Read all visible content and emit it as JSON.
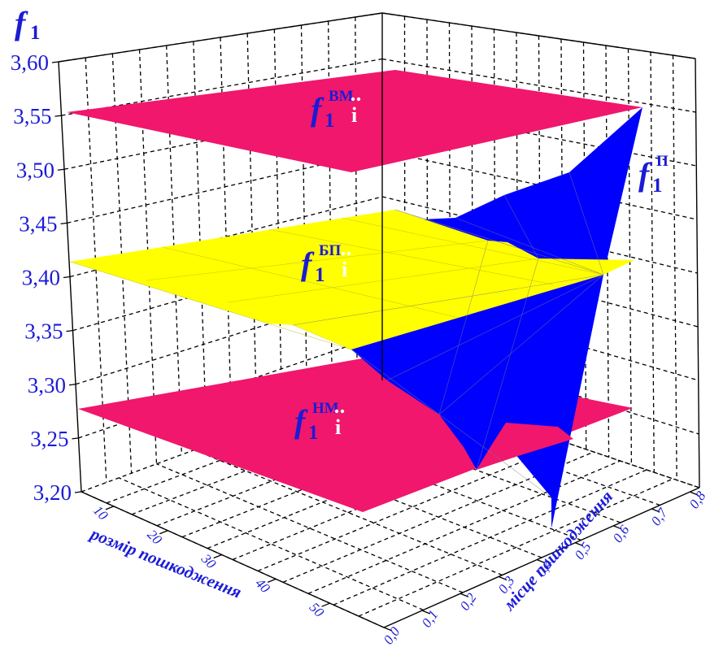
{
  "chart_data": {
    "type": "surface3d",
    "z_axis": {
      "label_symbol": "f",
      "label_sub": "1",
      "ticks": [
        "3,20",
        "3,25",
        "3,30",
        "3,35",
        "3,40",
        "3,45",
        "3,50",
        "3,55",
        "3,60"
      ],
      "range": [
        3.2,
        3.6
      ]
    },
    "x_axis": {
      "label": "розмір пошкодження",
      "ticks": [
        "10",
        "20",
        "30",
        "40",
        "50"
      ]
    },
    "y_axis": {
      "label": "місце пошкодження",
      "ticks": [
        "0,0",
        "0,1",
        "0,2",
        "0,3",
        "0,4",
        "0,5",
        "0,6",
        "0,7",
        "0,8"
      ]
    },
    "surfaces": [
      {
        "symbol": "f",
        "sub": "1",
        "sup": "ВМ",
        "mark": "і",
        "type": "plane",
        "z": 3.555,
        "color": "#f0176c"
      },
      {
        "symbol": "f",
        "sub": "1",
        "sup": "БП",
        "mark": "і",
        "type": "plane",
        "z": 3.418,
        "color": "#ffff00"
      },
      {
        "symbol": "f",
        "sub": "1",
        "sup": "НМ",
        "mark": "і",
        "type": "plane",
        "z": 3.282,
        "color": "#f0176c"
      },
      {
        "symbol": "f",
        "sub": "1",
        "sup": "П",
        "type": "surface",
        "color": "#0000ff",
        "z_min": 3.2,
        "z_max": 3.555
      }
    ],
    "grid": true
  }
}
